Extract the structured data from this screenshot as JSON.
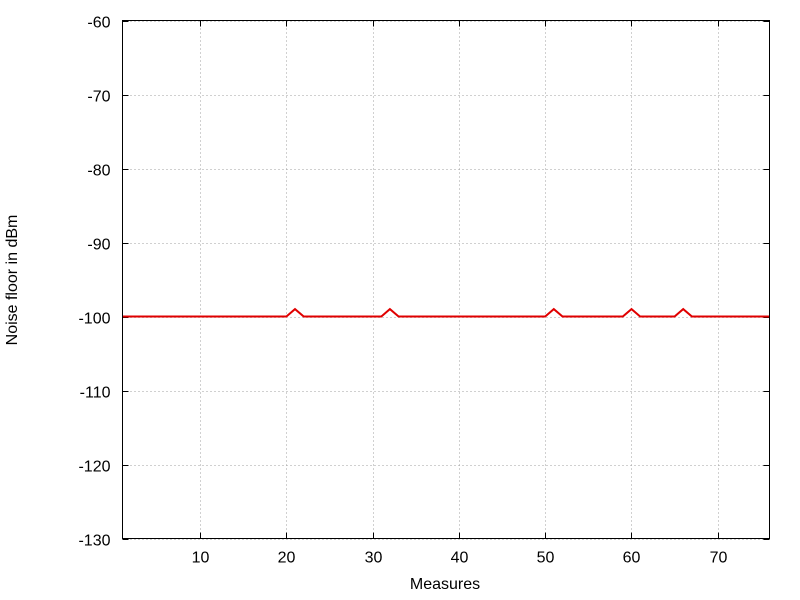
{
  "chart_data": {
    "type": "line",
    "title": "",
    "xlabel": "Measures",
    "ylabel": "Noise floor in dBm",
    "xlim": [
      1,
      76
    ],
    "ylim": [
      -130,
      -60
    ],
    "xticks": [
      10,
      20,
      30,
      40,
      50,
      60,
      70
    ],
    "yticks": [
      -60,
      -70,
      -80,
      -90,
      -100,
      -110,
      -120,
      -130
    ],
    "grid": true,
    "legend": "none",
    "series": [
      {
        "color": "#e00000",
        "x": [
          1,
          20,
          21,
          22,
          31,
          32,
          33,
          50,
          51,
          52,
          59,
          60,
          61,
          65,
          66,
          67,
          76
        ],
        "y": [
          -100,
          -100,
          -99,
          -100,
          -100,
          -99,
          -100,
          -100,
          -99,
          -100,
          -100,
          -99,
          -100,
          -100,
          -99,
          -100,
          -100
        ]
      }
    ]
  }
}
